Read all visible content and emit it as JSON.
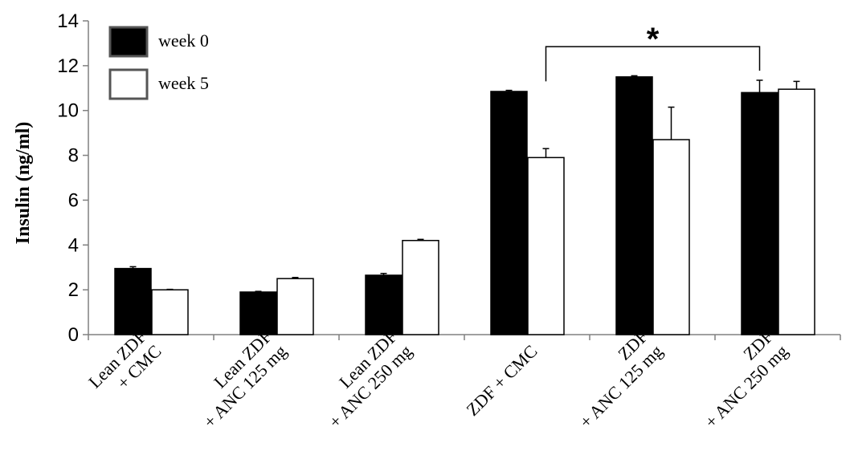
{
  "chart_data": {
    "type": "bar",
    "ylabel": "Insulin (ng/ml)",
    "ylim": [
      0,
      14
    ],
    "yticks": [
      0,
      2,
      4,
      6,
      8,
      10,
      12,
      14
    ],
    "categories": [
      [
        "Lean ZDF",
        "+ CMC"
      ],
      [
        "Lean ZDF",
        "+ ANC 125 mg"
      ],
      [
        "Lean ZDF",
        "+ ANC 250 mg"
      ],
      [
        "ZDF  + CMC"
      ],
      [
        "ZDF",
        "+ ANC 125 mg"
      ],
      [
        "ZDF",
        "+ ANC 250 mg"
      ]
    ],
    "series": [
      {
        "name": "week 0",
        "color": "#000000",
        "values": [
          2.95,
          1.9,
          2.65,
          10.85,
          11.5,
          10.8
        ],
        "errors": [
          0.08,
          0.03,
          0.08,
          0.05,
          0.05,
          0.55
        ]
      },
      {
        "name": "week 5",
        "color": "#ffffff",
        "values": [
          2.0,
          2.5,
          4.2,
          7.9,
          8.7,
          10.95
        ],
        "errors": [
          0.02,
          0.05,
          0.05,
          0.4,
          1.45,
          0.35
        ]
      }
    ],
    "legend": {
      "position": "top-left"
    },
    "significance": {
      "label": "*",
      "from_category": 3,
      "from_series": 1,
      "to_category": 5,
      "to_series": 0,
      "bracket_y": 12.85
    },
    "grid": false
  }
}
